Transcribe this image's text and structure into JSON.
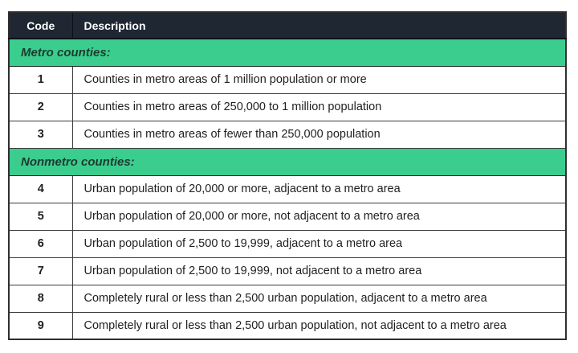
{
  "table": {
    "name": "rural-urban-continuum-codes",
    "colors": {
      "header_bg": "#1f2733",
      "header_text": "#ffffff",
      "section_bg": "#3bcd8e",
      "section_text": "#1d3b30",
      "body_text": "#1f1f1f",
      "border": "#3c3c3c"
    },
    "columns": [
      {
        "label": "Code"
      },
      {
        "label": "Description"
      }
    ],
    "sections": [
      {
        "header": "Metro counties:",
        "rows": [
          {
            "code": "1",
            "description": "Counties in metro areas of 1 million population or more"
          },
          {
            "code": "2",
            "description": "Counties in metro areas of 250,000 to 1 million population"
          },
          {
            "code": "3",
            "description": "Counties in metro areas of fewer than 250,000 population"
          }
        ]
      },
      {
        "header": "Nonmetro counties:",
        "rows": [
          {
            "code": "4",
            "description": "Urban population of 20,000 or more, adjacent to a metro area"
          },
          {
            "code": "5",
            "description": "Urban population of 20,000 or more, not adjacent to a metro area"
          },
          {
            "code": "6",
            "description": "Urban population of 2,500 to 19,999, adjacent to a metro area"
          },
          {
            "code": "7",
            "description": "Urban population of 2,500 to 19,999, not adjacent to a metro area"
          },
          {
            "code": "8",
            "description": "Completely rural or less than 2,500 urban population, adjacent to a metro area"
          },
          {
            "code": "9",
            "description": "Completely rural or less than 2,500 urban population, not adjacent to a metro area"
          }
        ]
      }
    ]
  }
}
